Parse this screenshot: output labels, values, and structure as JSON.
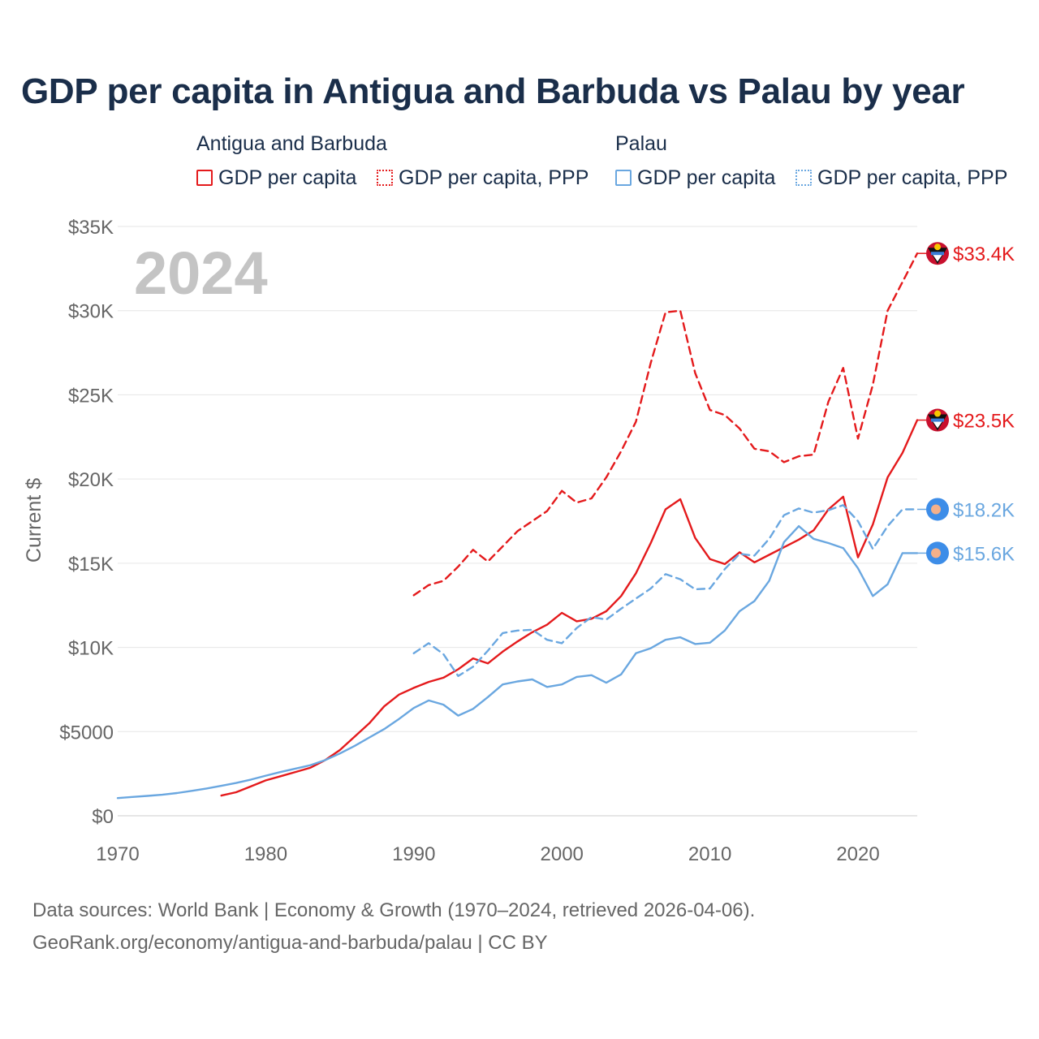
{
  "chart_data": {
    "type": "line",
    "title": "GDP per capita in Antigua and Barbuda vs Palau by year",
    "ylabel": "Current $",
    "xlabel": "",
    "year_watermark": "2024",
    "xlim": [
      1970,
      2024
    ],
    "ylim": [
      0,
      35000
    ],
    "x_ticks": [
      1970,
      1980,
      1990,
      2000,
      2010,
      2020
    ],
    "x_tick_labels": [
      "1970",
      "1980",
      "1990",
      "2000",
      "2010",
      "2020"
    ],
    "y_ticks": [
      0,
      5000,
      10000,
      15000,
      20000,
      25000,
      30000,
      35000
    ],
    "y_tick_labels": [
      "$0",
      "$5000",
      "$10K",
      "$15K",
      "$20K",
      "$25K",
      "$30K",
      "$35K"
    ],
    "grid": true,
    "legend": {
      "placement": "top",
      "groups": [
        {
          "name": "Antigua and Barbuda",
          "items": [
            "GDP per capita",
            "GDP per capita, PPP"
          ]
        },
        {
          "name": "Palau",
          "items": [
            "GDP per capita",
            "GDP per capita, PPP"
          ]
        }
      ]
    },
    "series": [
      {
        "name": "Antigua and Barbuda GDP per capita",
        "country": "Antigua and Barbuda",
        "color": "#e41a1c",
        "dash": false,
        "end_label": "$23.5K",
        "x": [
          1977,
          1978,
          1979,
          1980,
          1981,
          1982,
          1983,
          1984,
          1985,
          1986,
          1987,
          1988,
          1989,
          1990,
          1991,
          1992,
          1993,
          1994,
          1995,
          1996,
          1997,
          1998,
          1999,
          2000,
          2001,
          2002,
          2003,
          2004,
          2005,
          2006,
          2007,
          2008,
          2009,
          2010,
          2011,
          2012,
          2013,
          2014,
          2015,
          2016,
          2017,
          2018,
          2019,
          2020,
          2021,
          2022,
          2023,
          2024
        ],
        "values": [
          1200,
          1400,
          1750,
          2100,
          2350,
          2600,
          2850,
          3300,
          3900,
          4700,
          5500,
          6500,
          7200,
          7600,
          7950,
          8200,
          8700,
          9350,
          9050,
          9750,
          10350,
          10900,
          11350,
          12050,
          11550,
          11700,
          12150,
          13050,
          14400,
          16200,
          18200,
          18800,
          16500,
          15250,
          14950,
          15650,
          15050,
          15500,
          15950,
          16400,
          16950,
          18200,
          18950,
          15350,
          17300,
          20100,
          21550,
          23500
        ]
      },
      {
        "name": "Antigua and Barbuda GDP per capita, PPP",
        "country": "Antigua and Barbuda",
        "color": "#e41a1c",
        "dash": true,
        "end_label": "$33.4K",
        "x": [
          1990,
          1991,
          1992,
          1993,
          1994,
          1995,
          1996,
          1997,
          1998,
          1999,
          2000,
          2001,
          2002,
          2003,
          2004,
          2005,
          2006,
          2007,
          2008,
          2009,
          2010,
          2011,
          2012,
          2013,
          2014,
          2015,
          2016,
          2017,
          2018,
          2019,
          2020,
          2021,
          2022,
          2023,
          2024
        ],
        "values": [
          13100,
          13700,
          13950,
          14800,
          15800,
          15100,
          16000,
          16900,
          17500,
          18100,
          19300,
          18600,
          18850,
          20100,
          21650,
          23400,
          26900,
          29900,
          30000,
          26300,
          24100,
          23800,
          23000,
          21800,
          21650,
          21000,
          21350,
          21450,
          24600,
          26600,
          22400,
          25600,
          30000,
          31700,
          33400
        ]
      },
      {
        "name": "Palau GDP per capita",
        "country": "Palau",
        "color": "#6aa7e0",
        "dash": false,
        "end_label": "$15.6K",
        "x": [
          1970,
          1971,
          1972,
          1973,
          1974,
          1975,
          1976,
          1977,
          1978,
          1979,
          1980,
          1981,
          1982,
          1983,
          1984,
          1985,
          1986,
          1987,
          1988,
          1989,
          1990,
          1991,
          1992,
          1993,
          1994,
          1995,
          1996,
          1997,
          1998,
          1999,
          2000,
          2001,
          2002,
          2003,
          2004,
          2005,
          2006,
          2007,
          2008,
          2009,
          2010,
          2011,
          2012,
          2013,
          2014,
          2015,
          2016,
          2017,
          2018,
          2019,
          2020,
          2021,
          2022,
          2023,
          2024
        ],
        "values": [
          1050,
          1120,
          1180,
          1250,
          1350,
          1480,
          1620,
          1780,
          1950,
          2150,
          2380,
          2600,
          2800,
          3000,
          3300,
          3700,
          4150,
          4650,
          5150,
          5750,
          6400,
          6850,
          6600,
          5950,
          6350,
          7050,
          7800,
          7980,
          8100,
          7650,
          7800,
          8250,
          8350,
          7900,
          8400,
          9650,
          9950,
          10450,
          10600,
          10200,
          10280,
          11000,
          12150,
          12750,
          13950,
          16250,
          17200,
          16450,
          16200,
          15900,
          14700,
          13050,
          13750,
          15600,
          15600
        ]
      },
      {
        "name": "Palau GDP per capita, PPP",
        "country": "Palau",
        "color": "#6aa7e0",
        "dash": true,
        "end_label": "$18.2K",
        "x": [
          1990,
          1991,
          1992,
          1993,
          1994,
          1995,
          1996,
          1997,
          1998,
          1999,
          2000,
          2001,
          2002,
          2003,
          2004,
          2005,
          2006,
          2007,
          2008,
          2009,
          2010,
          2011,
          2012,
          2013,
          2014,
          2015,
          2016,
          2017,
          2018,
          2019,
          2020,
          2021,
          2022,
          2023,
          2024
        ],
        "values": [
          9650,
          10250,
          9600,
          8300,
          8850,
          9800,
          10850,
          11000,
          11050,
          10450,
          10250,
          11150,
          11800,
          11650,
          12300,
          12900,
          13500,
          14350,
          14050,
          13450,
          13500,
          14650,
          15550,
          15450,
          16450,
          17850,
          18250,
          18000,
          18150,
          18450,
          17500,
          15850,
          17200,
          18200,
          18200
        ]
      }
    ]
  },
  "legend_labels": {
    "group_ab": "Antigua and Barbuda",
    "group_pw": "Palau",
    "ab_gdp": "GDP per capita",
    "ab_ppp": "GDP per capita, PPP",
    "pw_gdp": "GDP per capita",
    "pw_ppp": "GDP per capita, PPP"
  },
  "footer": {
    "line1": "Data sources: World Bank | Economy & Growth (1970–2024, retrieved 2026-04-06).",
    "line2": "GeoRank.org/economy/antigua-and-barbuda/palau | CC BY"
  },
  "colors": {
    "antigua": "#e41a1c",
    "palau": "#6aa7e0",
    "title": "#1a2e4a",
    "axis_text": "#666666",
    "grid": "#e6e6e6",
    "watermark": "#c4c4c4"
  }
}
